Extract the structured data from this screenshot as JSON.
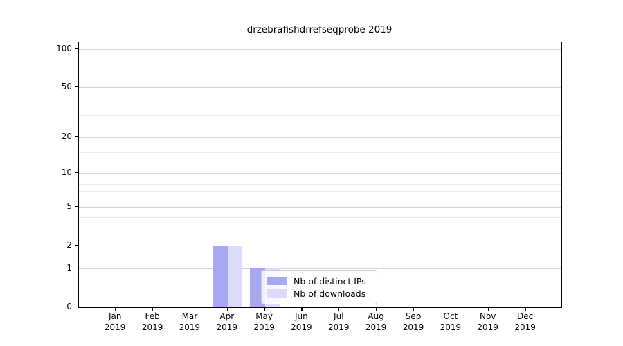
{
  "chart_data": {
    "type": "bar",
    "title": "drzebrafishdrrefseqprobe 2019",
    "xlabel": "",
    "ylabel": "",
    "year": "2019",
    "categories": [
      "Jan",
      "Feb",
      "Mar",
      "Apr",
      "May",
      "Jun",
      "Jul",
      "Aug",
      "Sep",
      "Oct",
      "Nov",
      "Dec"
    ],
    "series": [
      {
        "name": "Nb of distinct IPs",
        "color": "#a7a7f3",
        "values": [
          0,
          0,
          0,
          2,
          1,
          0,
          0,
          0,
          0,
          0,
          0,
          0
        ]
      },
      {
        "name": "Nb of downloads",
        "color": "#dcdcf8",
        "values": [
          0,
          0,
          0,
          2,
          1,
          0,
          0,
          0,
          0,
          0,
          0,
          0
        ]
      }
    ],
    "yscale": "log1p",
    "ylim": [
      0,
      100
    ],
    "yticks": [
      0,
      1,
      2,
      5,
      10,
      20,
      50,
      100
    ],
    "minor_yticks": [
      3,
      4,
      6,
      7,
      8,
      9,
      15,
      30,
      40,
      60,
      70,
      80,
      90
    ],
    "grid": "horizontal",
    "legend_position": "lower-center-inside"
  },
  "colors": {
    "major_grid": "#d4d4d4",
    "minor_grid": "#ebebeb",
    "spine": "#000000",
    "legend_border": "#cccccc",
    "background": "#ffffff"
  }
}
